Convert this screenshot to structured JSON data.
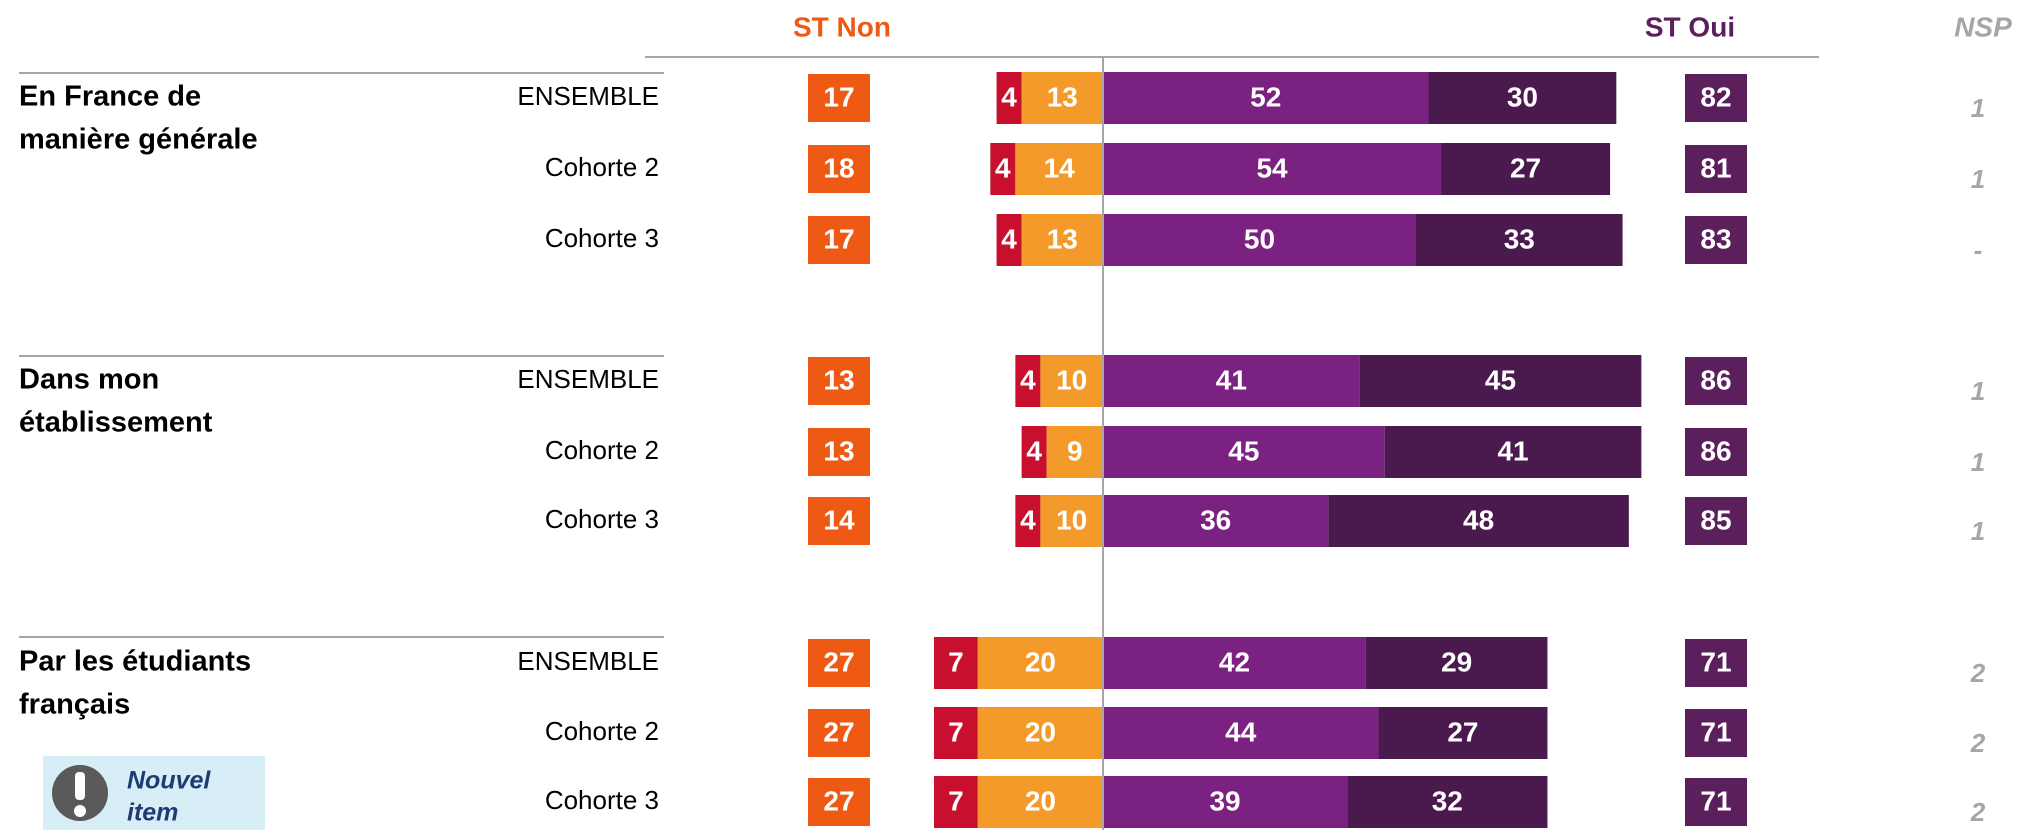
{
  "chart_data": {
    "type": "bar",
    "headers": {
      "st_non": "ST Non",
      "st_oui": "ST Oui",
      "nsp": "NSP"
    },
    "groups": [
      {
        "lines": [
          "En France de",
          "manière générale"
        ]
      },
      {
        "lines": [
          "Dans mon",
          "établissement"
        ]
      },
      {
        "lines": [
          "Par les étudiants",
          "français"
        ]
      }
    ],
    "categories": [
      "ENSEMBLE",
      "Cohorte 2",
      "Cohorte 3",
      "ENSEMBLE",
      "Cohorte 2",
      "Cohorte 3",
      "ENSEMBLE",
      "Cohorte 2",
      "Cohorte 3"
    ],
    "series": [
      {
        "color": "#c8102e",
        "values": [
          4,
          4,
          4,
          4,
          4,
          4,
          7,
          7,
          7
        ]
      },
      {
        "color": "#f39a2b",
        "values": [
          13,
          14,
          13,
          10,
          9,
          10,
          20,
          20,
          20
        ]
      },
      {
        "color": "#7b2182",
        "values": [
          52,
          54,
          50,
          41,
          45,
          36,
          42,
          44,
          39
        ]
      },
      {
        "color": "#4a1a4e",
        "values": [
          30,
          27,
          33,
          45,
          41,
          48,
          29,
          27,
          32
        ]
      }
    ],
    "st_non": {
      "color": "#ee5a14",
      "values": [
        17,
        18,
        17,
        13,
        13,
        14,
        27,
        27,
        27
      ]
    },
    "st_oui": {
      "color": "#5b1f5c",
      "values": [
        82,
        81,
        83,
        86,
        86,
        85,
        71,
        71,
        71
      ]
    },
    "nsp": {
      "values": [
        1,
        1,
        null,
        1,
        1,
        1,
        2,
        2,
        2
      ],
      "value_labels": [
        null,
        null,
        "-",
        null,
        null,
        null,
        null,
        null,
        null
      ]
    },
    "callout": {
      "lines": [
        "Nouvel",
        "item"
      ]
    }
  }
}
